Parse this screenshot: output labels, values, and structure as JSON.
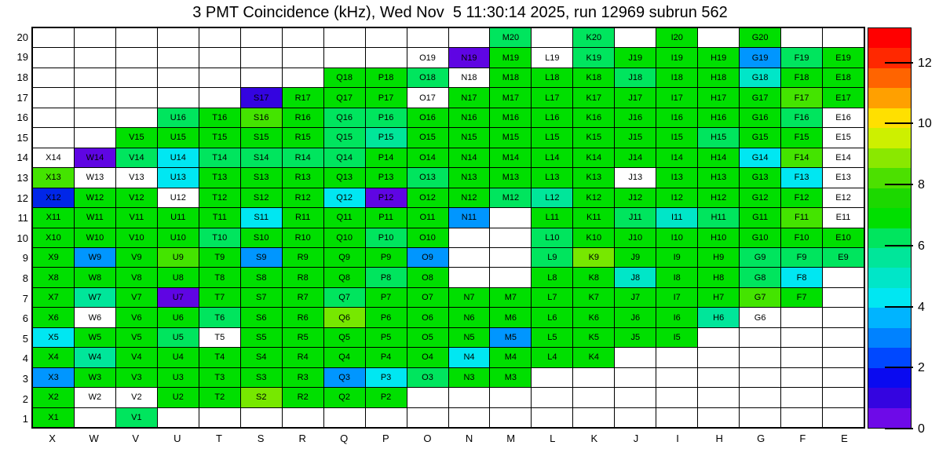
{
  "title": "3 PMT Coincidence (kHz), Wed Nov  5 11:30:14 2025, run 12969 subrun 562",
  "chart_data": {
    "type": "heatmap",
    "title": "3 PMT Coincidence (kHz), Wed Nov  5 11:30:14 2025, run 12969 subrun 562",
    "columns": [
      "X",
      "W",
      "V",
      "U",
      "T",
      "S",
      "R",
      "Q",
      "P",
      "O",
      "N",
      "M",
      "L",
      "K",
      "J",
      "I",
      "H",
      "G",
      "F",
      "E"
    ],
    "rows": [
      "20",
      "19",
      "18",
      "17",
      "16",
      "15",
      "14",
      "13",
      "12",
      "11",
      "10",
      "9",
      "8",
      "7",
      "6",
      "5",
      "4",
      "3",
      "2",
      "1"
    ],
    "legend_position": "right",
    "colorbar": {
      "min": 0,
      "max": 13.15,
      "tick_values": [
        12,
        10,
        8,
        6,
        4,
        2,
        0
      ],
      "tick_labels": [
        "12",
        "10",
        "8",
        "6",
        "4",
        "2",
        "0"
      ],
      "bands_top_to_bottom": [
        "#ff0000",
        "#ff2800",
        "#ff6400",
        "#ffa000",
        "#ffe000",
        "#cdf000",
        "#8ae800",
        "#4ce000",
        "#1cd800",
        "#00df00",
        "#00e55e",
        "#00e69a",
        "#00e6c8",
        "#00e7f2",
        "#00b4ff",
        "#0082ff",
        "#0048ff",
        "#0a0af0",
        "#3404e0",
        "#6e0ae8"
      ]
    },
    "palette": {
      "g": {
        "hex": "#00df00",
        "approx_kHz": 6.5
      },
      "g2": {
        "hex": "#44e400",
        "approx_kHz": 7.3
      },
      "ch": {
        "hex": "#77e800",
        "approx_kHz": 8.0
      },
      "sg": {
        "hex": "#00e55e",
        "approx_kHz": 5.7
      },
      "sg2": {
        "hex": "#00e69a",
        "approx_kHz": 5.1
      },
      "tq": {
        "hex": "#00e6c8",
        "approx_kHz": 4.6
      },
      "cy": {
        "hex": "#00e7f2",
        "approx_kHz": 4.1
      },
      "sb": {
        "hex": "#0096ff",
        "approx_kHz": 3.0
      },
      "bl": {
        "hex": "#0026e8",
        "approx_kHz": 2.2
      },
      "bv": {
        "hex": "#3404e0",
        "approx_kHz": 1.2
      },
      "vi": {
        "hex": "#5f05e3",
        "approx_kHz": 0.6
      },
      "wl": {
        "hex": "#ffffff",
        "approx_kHz": null
      }
    },
    "cells_by_row_top_to_bottom": [
      [
        null,
        null,
        null,
        null,
        null,
        null,
        null,
        null,
        null,
        null,
        null,
        [
          "M20",
          "sg"
        ],
        null,
        [
          "K20",
          "sg"
        ],
        null,
        [
          "I20",
          "g"
        ],
        null,
        [
          "G20",
          "g"
        ],
        null,
        null
      ],
      [
        null,
        null,
        null,
        null,
        null,
        null,
        null,
        null,
        null,
        [
          "O19",
          "wl"
        ],
        [
          "N19",
          "vi"
        ],
        [
          "M19",
          "g"
        ],
        [
          "L19",
          "wl"
        ],
        [
          "K19",
          "sg"
        ],
        [
          "J19",
          "g"
        ],
        [
          "I19",
          "g"
        ],
        [
          "H19",
          "g"
        ],
        [
          "G19",
          "sb"
        ],
        [
          "F19",
          "sg"
        ],
        [
          "E19",
          "g"
        ]
      ],
      [
        null,
        null,
        null,
        null,
        null,
        null,
        null,
        [
          "Q18",
          "g"
        ],
        [
          "P18",
          "g"
        ],
        [
          "O18",
          "sg"
        ],
        [
          "N18",
          "wl"
        ],
        [
          "M18",
          "g"
        ],
        [
          "L18",
          "g"
        ],
        [
          "K18",
          "g"
        ],
        [
          "J18",
          "sg"
        ],
        [
          "I18",
          "g"
        ],
        [
          "H18",
          "g"
        ],
        [
          "G18",
          "tq"
        ],
        [
          "F18",
          "g"
        ],
        [
          "E18",
          "g"
        ]
      ],
      [
        null,
        null,
        null,
        null,
        null,
        [
          "S17",
          "bv"
        ],
        [
          "R17",
          "g"
        ],
        [
          "Q17",
          "g"
        ],
        [
          "P17",
          "g"
        ],
        [
          "O17",
          "wl"
        ],
        [
          "N17",
          "g"
        ],
        [
          "M17",
          "g"
        ],
        [
          "L17",
          "g"
        ],
        [
          "K17",
          "g"
        ],
        [
          "J17",
          "g"
        ],
        [
          "I17",
          "g"
        ],
        [
          "H17",
          "g"
        ],
        [
          "G17",
          "g"
        ],
        [
          "F17",
          "g2"
        ],
        [
          "E17",
          "g"
        ]
      ],
      [
        null,
        null,
        null,
        [
          "U16",
          "sg"
        ],
        [
          "T16",
          "g"
        ],
        [
          "S16",
          "g2"
        ],
        [
          "R16",
          "g"
        ],
        [
          "Q16",
          "sg"
        ],
        [
          "P16",
          "sg"
        ],
        [
          "O16",
          "g"
        ],
        [
          "N16",
          "g"
        ],
        [
          "M16",
          "g"
        ],
        [
          "L16",
          "g"
        ],
        [
          "K16",
          "g"
        ],
        [
          "J16",
          "g"
        ],
        [
          "I16",
          "g"
        ],
        [
          "H16",
          "g"
        ],
        [
          "G16",
          "g"
        ],
        [
          "F16",
          "sg"
        ],
        [
          "E16",
          "wl"
        ]
      ],
      [
        null,
        null,
        [
          "V15",
          "g"
        ],
        [
          "U15",
          "g"
        ],
        [
          "T15",
          "g"
        ],
        [
          "S15",
          "g"
        ],
        [
          "R15",
          "g"
        ],
        [
          "Q15",
          "sg"
        ],
        [
          "P15",
          "sg2"
        ],
        [
          "O15",
          "g"
        ],
        [
          "N15",
          "g"
        ],
        [
          "M15",
          "g"
        ],
        [
          "L15",
          "g"
        ],
        [
          "K15",
          "g"
        ],
        [
          "J15",
          "g"
        ],
        [
          "I15",
          "g"
        ],
        [
          "H15",
          "sg"
        ],
        [
          "G15",
          "g"
        ],
        [
          "F15",
          "g"
        ],
        [
          "E15",
          "wl"
        ]
      ],
      [
        [
          "X14",
          "wl"
        ],
        [
          "W14",
          "vi"
        ],
        [
          "V14",
          "sg"
        ],
        [
          "U14",
          "cy"
        ],
        [
          "T14",
          "sg"
        ],
        [
          "S14",
          "sg"
        ],
        [
          "R14",
          "sg"
        ],
        [
          "Q14",
          "sg"
        ],
        [
          "P14",
          "g"
        ],
        [
          "O14",
          "g"
        ],
        [
          "N14",
          "g"
        ],
        [
          "M14",
          "g"
        ],
        [
          "L14",
          "g"
        ],
        [
          "K14",
          "g"
        ],
        [
          "J14",
          "g"
        ],
        [
          "I14",
          "g"
        ],
        [
          "H14",
          "g"
        ],
        [
          "G14",
          "cy"
        ],
        [
          "F14",
          "g2"
        ],
        [
          "E14",
          "wl"
        ]
      ],
      [
        [
          "X13",
          "g2"
        ],
        [
          "W13",
          "wl"
        ],
        [
          "V13",
          "wl"
        ],
        [
          "U13",
          "cy"
        ],
        [
          "T13",
          "g"
        ],
        [
          "S13",
          "g"
        ],
        [
          "R13",
          "g"
        ],
        [
          "Q13",
          "g"
        ],
        [
          "P13",
          "g"
        ],
        [
          "O13",
          "sg"
        ],
        [
          "N13",
          "g"
        ],
        [
          "M13",
          "g"
        ],
        [
          "L13",
          "g"
        ],
        [
          "K13",
          "g"
        ],
        [
          "J13",
          "wl"
        ],
        [
          "I13",
          "g"
        ],
        [
          "H13",
          "g"
        ],
        [
          "G13",
          "g"
        ],
        [
          "F13",
          "cy"
        ],
        [
          "E13",
          "wl"
        ]
      ],
      [
        [
          "X12",
          "bl"
        ],
        [
          "W12",
          "g"
        ],
        [
          "V12",
          "g"
        ],
        [
          "U12",
          "wl"
        ],
        [
          "T12",
          "g"
        ],
        [
          "S12",
          "g"
        ],
        [
          "R12",
          "g"
        ],
        [
          "Q12",
          "cy"
        ],
        [
          "P12",
          "vi"
        ],
        [
          "O12",
          "g"
        ],
        [
          "N12",
          "g"
        ],
        [
          "M12",
          "sg"
        ],
        [
          "L12",
          "sg2"
        ],
        [
          "K12",
          "g"
        ],
        [
          "J12",
          "g"
        ],
        [
          "I12",
          "g"
        ],
        [
          "H12",
          "g"
        ],
        [
          "G12",
          "g"
        ],
        [
          "F12",
          "g"
        ],
        [
          "E12",
          "wl"
        ]
      ],
      [
        [
          "X11",
          "g"
        ],
        [
          "W11",
          "g"
        ],
        [
          "V11",
          "g"
        ],
        [
          "U11",
          "g"
        ],
        [
          "T11",
          "g"
        ],
        [
          "S11",
          "cy"
        ],
        [
          "R11",
          "g"
        ],
        [
          "Q11",
          "g"
        ],
        [
          "P11",
          "g"
        ],
        [
          "O11",
          "g"
        ],
        [
          "N11",
          "sb"
        ],
        null,
        [
          "L11",
          "g"
        ],
        [
          "K11",
          "g"
        ],
        [
          "J11",
          "sg"
        ],
        [
          "I11",
          "tq"
        ],
        [
          "H11",
          "sg"
        ],
        [
          "G11",
          "g"
        ],
        [
          "F11",
          "g2"
        ],
        [
          "E11",
          "wl"
        ]
      ],
      [
        [
          "X10",
          "g"
        ],
        [
          "W10",
          "g"
        ],
        [
          "V10",
          "g"
        ],
        [
          "U10",
          "g"
        ],
        [
          "T10",
          "sg"
        ],
        [
          "S10",
          "g"
        ],
        [
          "R10",
          "g"
        ],
        [
          "Q10",
          "g"
        ],
        [
          "P10",
          "sg"
        ],
        [
          "O10",
          "g"
        ],
        null,
        null,
        [
          "L10",
          "sg"
        ],
        [
          "K10",
          "g"
        ],
        [
          "J10",
          "g"
        ],
        [
          "I10",
          "g"
        ],
        [
          "H10",
          "g"
        ],
        [
          "G10",
          "g"
        ],
        [
          "F10",
          "g"
        ],
        [
          "E10",
          "g"
        ]
      ],
      [
        [
          "X9",
          "g"
        ],
        [
          "W9",
          "sb"
        ],
        [
          "V9",
          "g"
        ],
        [
          "U9",
          "g2"
        ],
        [
          "T9",
          "g"
        ],
        [
          "S9",
          "sb"
        ],
        [
          "R9",
          "g"
        ],
        [
          "Q9",
          "g"
        ],
        [
          "P9",
          "g"
        ],
        [
          "O9",
          "sb"
        ],
        null,
        null,
        [
          "L9",
          "sg"
        ],
        [
          "K9",
          "ch"
        ],
        [
          "J9",
          "g"
        ],
        [
          "I9",
          "g"
        ],
        [
          "H9",
          "g"
        ],
        [
          "G9",
          "sg"
        ],
        [
          "F9",
          "sg"
        ],
        [
          "E9",
          "sg"
        ]
      ],
      [
        [
          "X8",
          "g"
        ],
        [
          "W8",
          "g"
        ],
        [
          "V8",
          "g"
        ],
        [
          "U8",
          "g"
        ],
        [
          "T8",
          "g"
        ],
        [
          "S8",
          "g"
        ],
        [
          "R8",
          "g"
        ],
        [
          "Q8",
          "g"
        ],
        [
          "P8",
          "sg"
        ],
        [
          "O8",
          "g"
        ],
        null,
        null,
        [
          "L8",
          "g"
        ],
        [
          "K8",
          "g"
        ],
        [
          "J8",
          "tq"
        ],
        [
          "I8",
          "g"
        ],
        [
          "H8",
          "g"
        ],
        [
          "G8",
          "sg"
        ],
        [
          "F8",
          "cy"
        ],
        null
      ],
      [
        [
          "X7",
          "g"
        ],
        [
          "W7",
          "sg2"
        ],
        [
          "V7",
          "g"
        ],
        [
          "U7",
          "vi"
        ],
        [
          "T7",
          "g"
        ],
        [
          "S7",
          "g"
        ],
        [
          "R7",
          "g"
        ],
        [
          "Q7",
          "sg"
        ],
        [
          "P7",
          "g"
        ],
        [
          "O7",
          "g"
        ],
        [
          "N7",
          "g"
        ],
        [
          "M7",
          "g"
        ],
        [
          "L7",
          "g"
        ],
        [
          "K7",
          "g"
        ],
        [
          "J7",
          "g"
        ],
        [
          "I7",
          "g"
        ],
        [
          "H7",
          "g"
        ],
        [
          "G7",
          "g2"
        ],
        [
          "F7",
          "g"
        ],
        null
      ],
      [
        [
          "X6",
          "g"
        ],
        [
          "W6",
          "wl"
        ],
        [
          "V6",
          "g"
        ],
        [
          "U6",
          "g"
        ],
        [
          "T6",
          "sg"
        ],
        [
          "S6",
          "g"
        ],
        [
          "R6",
          "g"
        ],
        [
          "Q6",
          "ch"
        ],
        [
          "P6",
          "g"
        ],
        [
          "O6",
          "g"
        ],
        [
          "N6",
          "g"
        ],
        [
          "M6",
          "g"
        ],
        [
          "L6",
          "g"
        ],
        [
          "K6",
          "g"
        ],
        [
          "J6",
          "g"
        ],
        [
          "I6",
          "g"
        ],
        [
          "H6",
          "sg2"
        ],
        [
          "G6",
          "wl"
        ],
        null,
        null
      ],
      [
        [
          "X5",
          "cy"
        ],
        [
          "W5",
          "g"
        ],
        [
          "V5",
          "g"
        ],
        [
          "U5",
          "sg"
        ],
        [
          "T5",
          "wl"
        ],
        [
          "S5",
          "g"
        ],
        [
          "R5",
          "g"
        ],
        [
          "Q5",
          "g"
        ],
        [
          "P5",
          "g"
        ],
        [
          "O5",
          "g"
        ],
        [
          "N5",
          "g"
        ],
        [
          "M5",
          "sb"
        ],
        [
          "L5",
          "g"
        ],
        [
          "K5",
          "g"
        ],
        [
          "J5",
          "g"
        ],
        [
          "I5",
          "g"
        ],
        null,
        null,
        null,
        null
      ],
      [
        [
          "X4",
          "g"
        ],
        [
          "W4",
          "sg2"
        ],
        [
          "V4",
          "g"
        ],
        [
          "U4",
          "g"
        ],
        [
          "T4",
          "g"
        ],
        [
          "S4",
          "g"
        ],
        [
          "R4",
          "g"
        ],
        [
          "Q4",
          "g"
        ],
        [
          "P4",
          "g"
        ],
        [
          "O4",
          "g"
        ],
        [
          "N4",
          "cy"
        ],
        [
          "M4",
          "g"
        ],
        [
          "L4",
          "g"
        ],
        [
          "K4",
          "g"
        ],
        null,
        null,
        null,
        null,
        null,
        null
      ],
      [
        [
          "X3",
          "sb"
        ],
        [
          "W3",
          "g"
        ],
        [
          "V3",
          "g"
        ],
        [
          "U3",
          "g"
        ],
        [
          "T3",
          "g"
        ],
        [
          "S3",
          "g"
        ],
        [
          "R3",
          "g"
        ],
        [
          "Q3",
          "sb"
        ],
        [
          "P3",
          "cy"
        ],
        [
          "O3",
          "sg"
        ],
        [
          "N3",
          "g"
        ],
        [
          "M3",
          "g"
        ],
        null,
        null,
        null,
        null,
        null,
        null,
        null,
        null
      ],
      [
        [
          "X2",
          "g"
        ],
        [
          "W2",
          "wl"
        ],
        [
          "V2",
          "wl"
        ],
        [
          "U2",
          "g"
        ],
        [
          "T2",
          "g"
        ],
        [
          "S2",
          "ch"
        ],
        [
          "R2",
          "g"
        ],
        [
          "Q2",
          "g"
        ],
        [
          "P2",
          "g"
        ],
        null,
        null,
        null,
        null,
        null,
        null,
        null,
        null,
        null,
        null,
        null
      ],
      [
        [
          "X1",
          "g"
        ],
        null,
        [
          "V1",
          "sg"
        ],
        null,
        null,
        null,
        null,
        null,
        null,
        null,
        null,
        null,
        null,
        null,
        null,
        null,
        null,
        null,
        null,
        null
      ]
    ]
  }
}
